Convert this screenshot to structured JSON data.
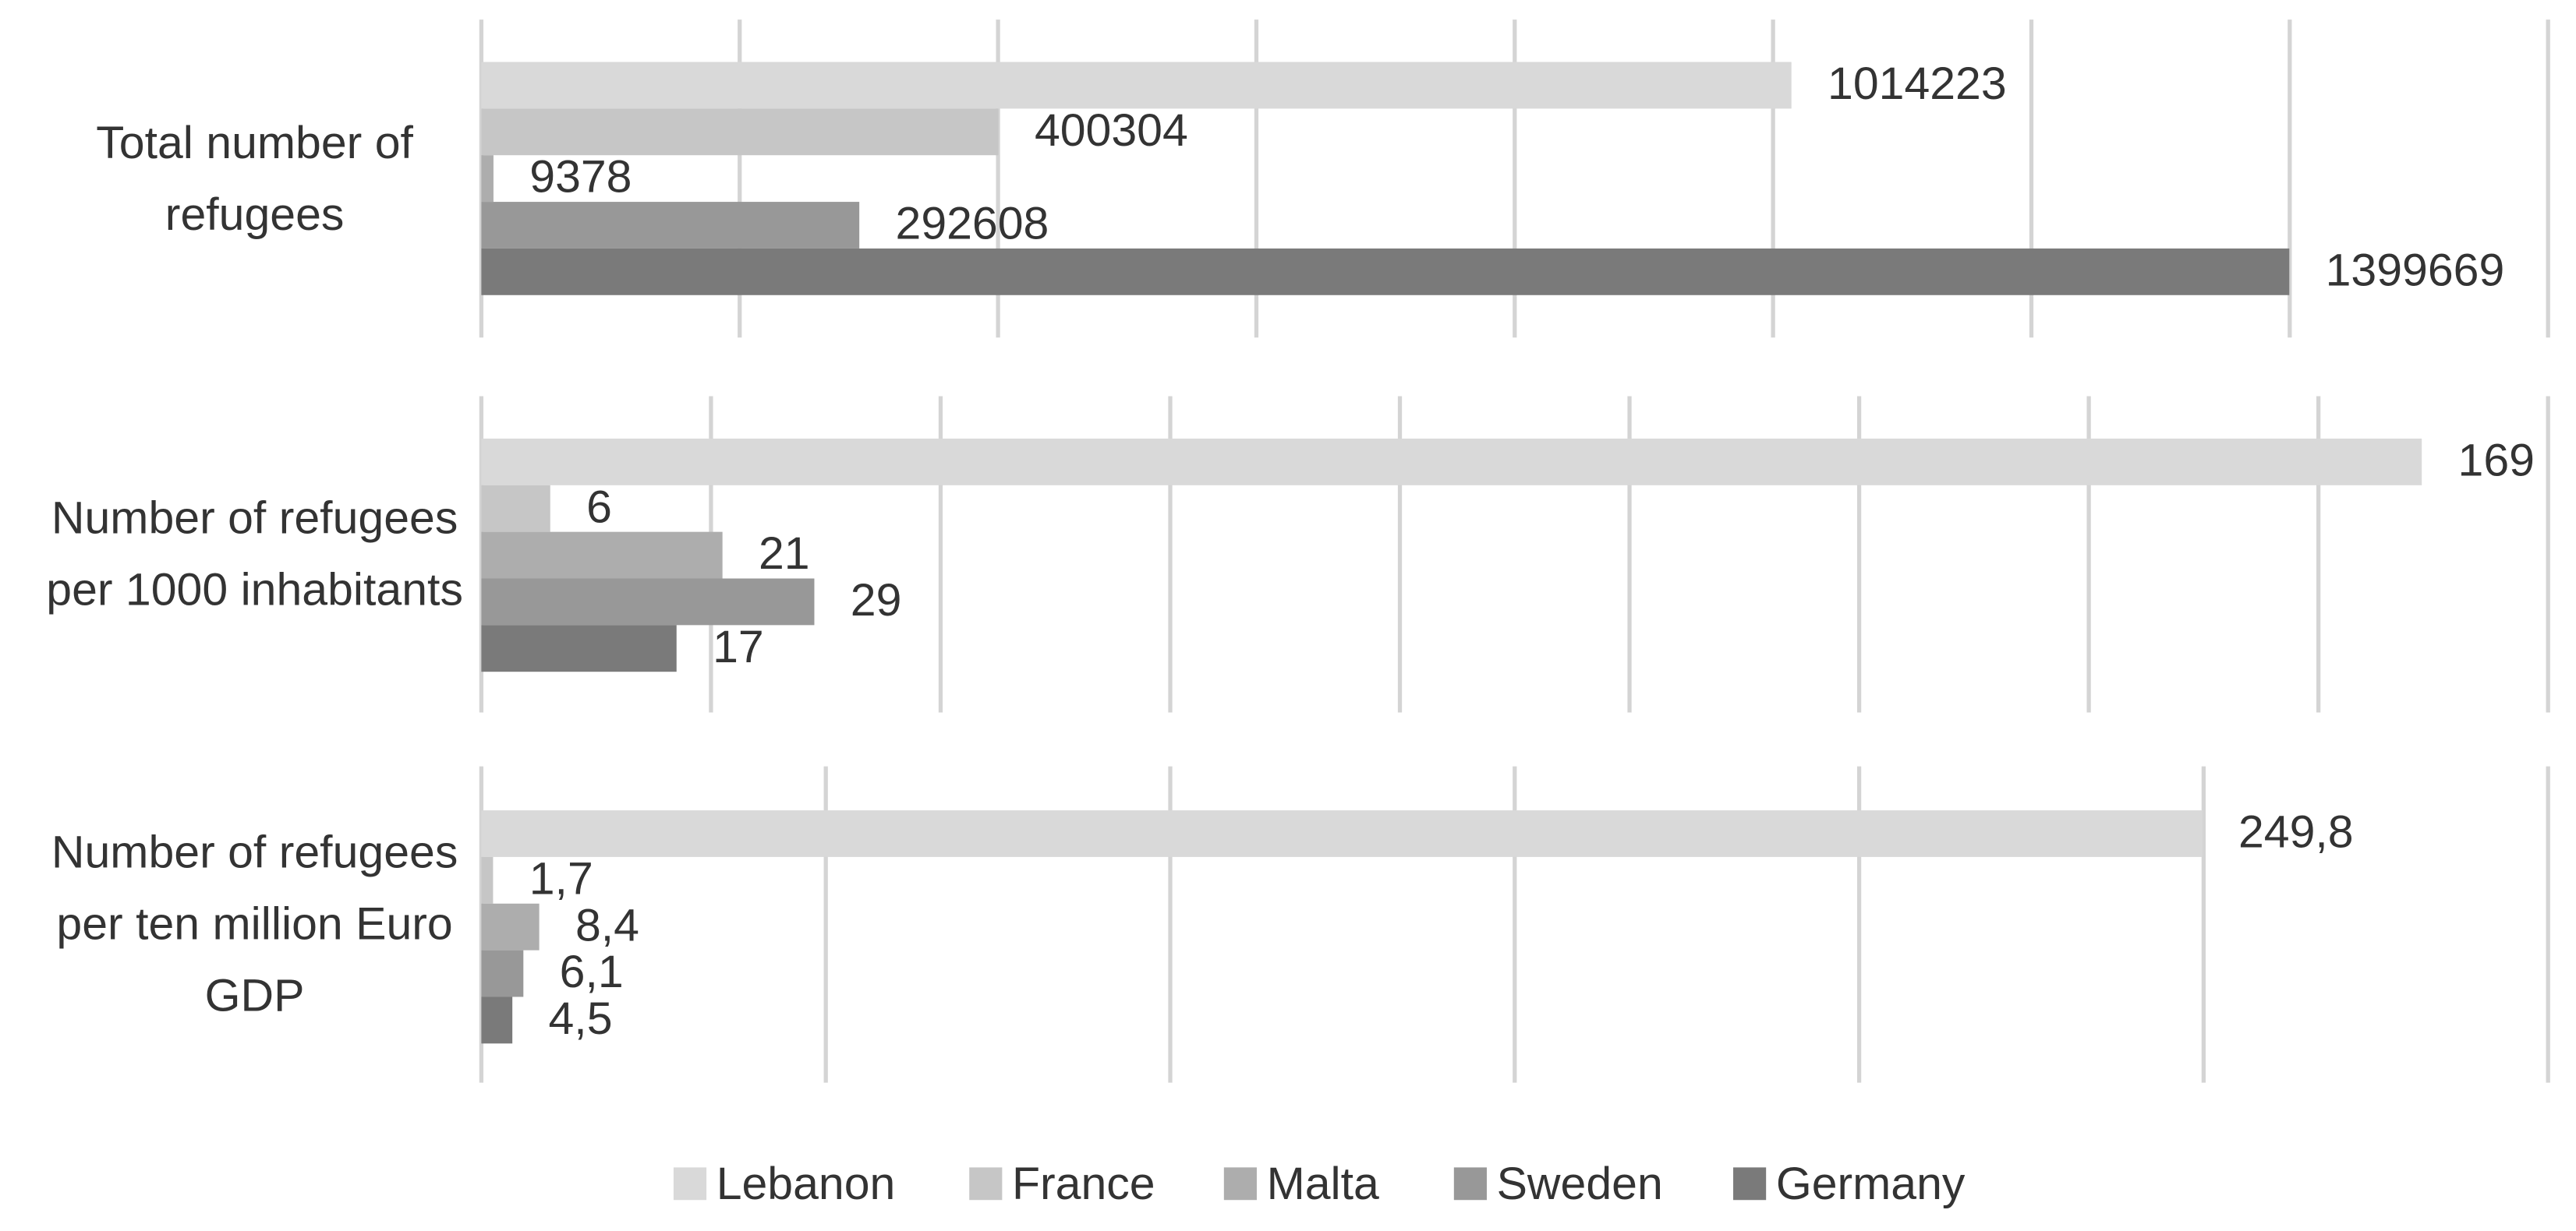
{
  "chart_data": {
    "type": "bar",
    "orientation": "horizontal",
    "categories": [
      "Total number of refugees",
      "Number of refugees per 1000 inhabitants",
      "Number of refugees per ten million Euro GDP"
    ],
    "category_axes": [
      {
        "xlim": [
          0,
          1600000
        ],
        "xticks": [
          0,
          200000,
          400000,
          600000,
          800000,
          1000000,
          1200000,
          1400000,
          1600000
        ]
      },
      {
        "xlim": [
          0,
          180
        ],
        "xticks": [
          0,
          20,
          40,
          60,
          80,
          100,
          120,
          140,
          160,
          180
        ]
      },
      {
        "xlim": [
          0,
          300
        ],
        "xticks": [
          0,
          50,
          100,
          150,
          200,
          250,
          300
        ]
      }
    ],
    "grid": true,
    "legend": "bottom",
    "series": [
      {
        "name": "Lebanon",
        "color": "#d9d9d9",
        "values": [
          1014223,
          169,
          249.8
        ],
        "value_labels": [
          "1014223",
          "169",
          "249,8"
        ]
      },
      {
        "name": "France",
        "color": "#c6c6c6",
        "values": [
          400304,
          6,
          1.7
        ],
        "value_labels": [
          "400304",
          "6",
          "1,7"
        ]
      },
      {
        "name": "Malta",
        "color": "#adadad",
        "values": [
          9378,
          21,
          8.4
        ],
        "value_labels": [
          "9378",
          "21",
          "8,4"
        ]
      },
      {
        "name": "Sweden",
        "color": "#989898",
        "values": [
          292608,
          29,
          6.1
        ],
        "value_labels": [
          "292608",
          "29",
          "6,1"
        ]
      },
      {
        "name": "Germany",
        "color": "#7a7a7a",
        "values": [
          1399669,
          17,
          4.5
        ],
        "value_labels": [
          "1399669",
          "17",
          "4,5"
        ]
      }
    ]
  }
}
